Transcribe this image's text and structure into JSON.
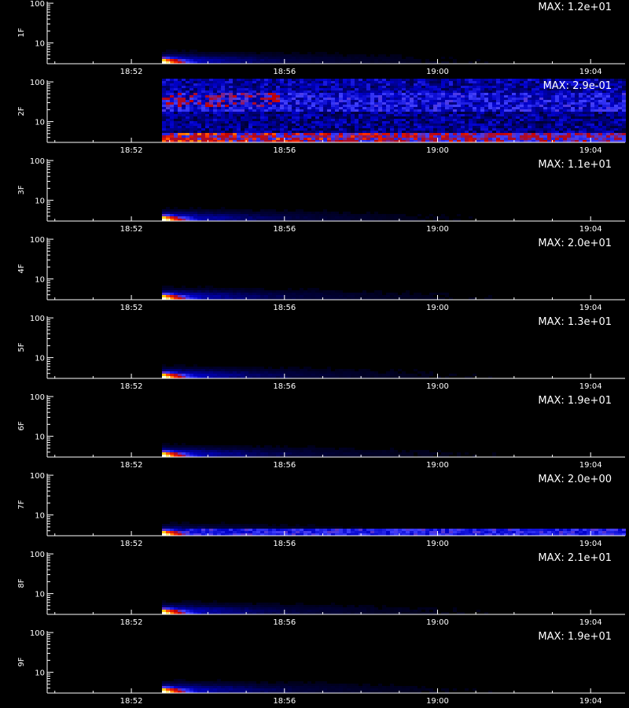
{
  "chart_data": {
    "type": "heatmap",
    "x_tick_labels": [
      "18:52",
      "18:56",
      "19:00",
      "19:04"
    ],
    "x_tick_minutes": [
      0,
      4,
      8,
      12
    ],
    "xlim_minutes": [
      -2.2,
      12.9
    ],
    "data_start_minutes": 0.8,
    "y_scale": "log",
    "ylim": [
      3,
      110
    ],
    "y_tick_labels": [
      "10",
      "100"
    ],
    "y_tick_values": [
      10,
      100
    ],
    "xlabel": "",
    "colormap": [
      "#000000",
      "#00003c",
      "#0000c8",
      "#4040ff",
      "#c00000",
      "#ff3000",
      "#ffc800",
      "#ffffe0"
    ],
    "panels": [
      {
        "name": "1F",
        "max_label": "MAX: 1.2e+01",
        "pattern": "burst"
      },
      {
        "name": "2F",
        "max_label": "MAX: 2.9e-01",
        "pattern": "noise"
      },
      {
        "name": "3F",
        "max_label": "MAX: 1.1e+01",
        "pattern": "burst"
      },
      {
        "name": "4F",
        "max_label": "MAX: 2.0e+01",
        "pattern": "burst"
      },
      {
        "name": "5F",
        "max_label": "MAX: 1.3e+01",
        "pattern": "burst"
      },
      {
        "name": "6F",
        "max_label": "MAX: 1.9e+01",
        "pattern": "burst"
      },
      {
        "name": "7F",
        "max_label": "MAX: 2.0e+00",
        "pattern": "burst-band"
      },
      {
        "name": "8F",
        "max_label": "MAX: 2.1e+01",
        "pattern": "burst"
      },
      {
        "name": "9F",
        "max_label": "MAX: 1.9e+01",
        "pattern": "burst"
      }
    ]
  }
}
